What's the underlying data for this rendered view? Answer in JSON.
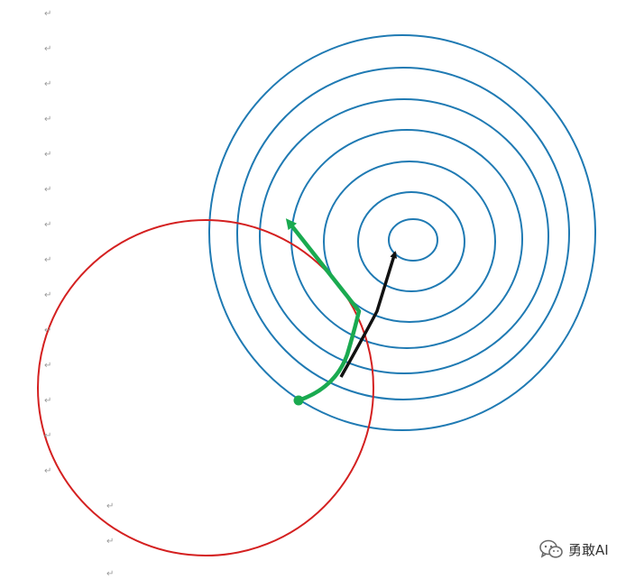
{
  "document": {
    "paragraph_mark": "↵",
    "paragraph_mark_count": 17
  },
  "diagram": {
    "contours": {
      "ring_count": 7,
      "color": "#1f7ab3"
    },
    "constraint_circle": {
      "color": "#d42020"
    },
    "gradient_arrow": {
      "color": "#111111"
    },
    "projected_path": {
      "color": "#1aaa50"
    }
  },
  "watermark": {
    "icon": "wechat-icon",
    "text": "勇敢AI"
  }
}
